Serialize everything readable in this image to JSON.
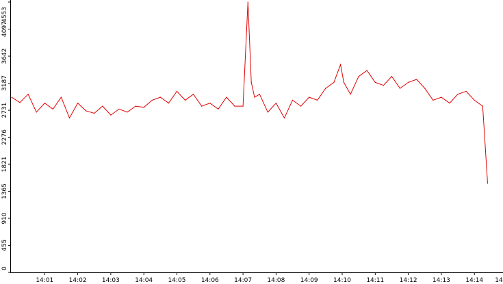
{
  "chart_data": {
    "type": "line",
    "title": "",
    "xlabel": "",
    "ylabel": "",
    "ylim": [
      0,
      4553
    ],
    "y_ticks": [
      "0",
      "455",
      "910",
      "1365",
      "1821",
      "2276",
      "2731",
      "3187",
      "3642",
      "4097",
      "4553"
    ],
    "x_tick_labels": [
      "14:01",
      "14:02",
      "14:03",
      "14:04",
      "14:05",
      "14:06",
      "14:07",
      "14:08",
      "14:09",
      "14:10",
      "14:11",
      "14:12",
      "14:13",
      "14:14",
      "14"
    ],
    "grid": false,
    "legend": "none",
    "series": [
      {
        "color": "#e00000",
        "x_minutes": [
          0.0,
          0.25,
          0.5,
          0.75,
          1.0,
          1.25,
          1.5,
          1.75,
          2.0,
          2.25,
          2.5,
          2.75,
          3.0,
          3.25,
          3.5,
          3.75,
          4.0,
          4.25,
          4.5,
          4.75,
          5.0,
          5.25,
          5.5,
          5.75,
          6.0,
          6.25,
          6.5,
          6.75,
          7.0,
          7.15,
          7.25,
          7.35,
          7.5,
          7.75,
          8.0,
          8.25,
          8.5,
          8.75,
          9.0,
          9.25,
          9.5,
          9.75,
          9.95,
          10.05,
          10.25,
          10.5,
          10.75,
          11.0,
          11.25,
          11.5,
          11.75,
          12.0,
          12.25,
          12.5,
          12.75,
          13.0,
          13.25,
          13.5,
          13.75,
          14.0,
          14.25,
          14.4
        ],
        "values": [
          2950,
          2860,
          3000,
          2700,
          2850,
          2750,
          2950,
          2600,
          2850,
          2720,
          2680,
          2800,
          2650,
          2750,
          2700,
          2800,
          2780,
          2900,
          2950,
          2850,
          3050,
          2900,
          3000,
          2800,
          2850,
          2750,
          2950,
          2800,
          2800,
          4553,
          3200,
          2950,
          3000,
          2700,
          2850,
          2600,
          2900,
          2800,
          2950,
          2900,
          3100,
          3200,
          3500,
          3200,
          3000,
          3300,
          3400,
          3200,
          3150,
          3300,
          3100,
          3200,
          3250,
          3100,
          2900,
          2950,
          2850,
          3000,
          3050,
          2900,
          2800,
          1500
        ]
      }
    ]
  }
}
